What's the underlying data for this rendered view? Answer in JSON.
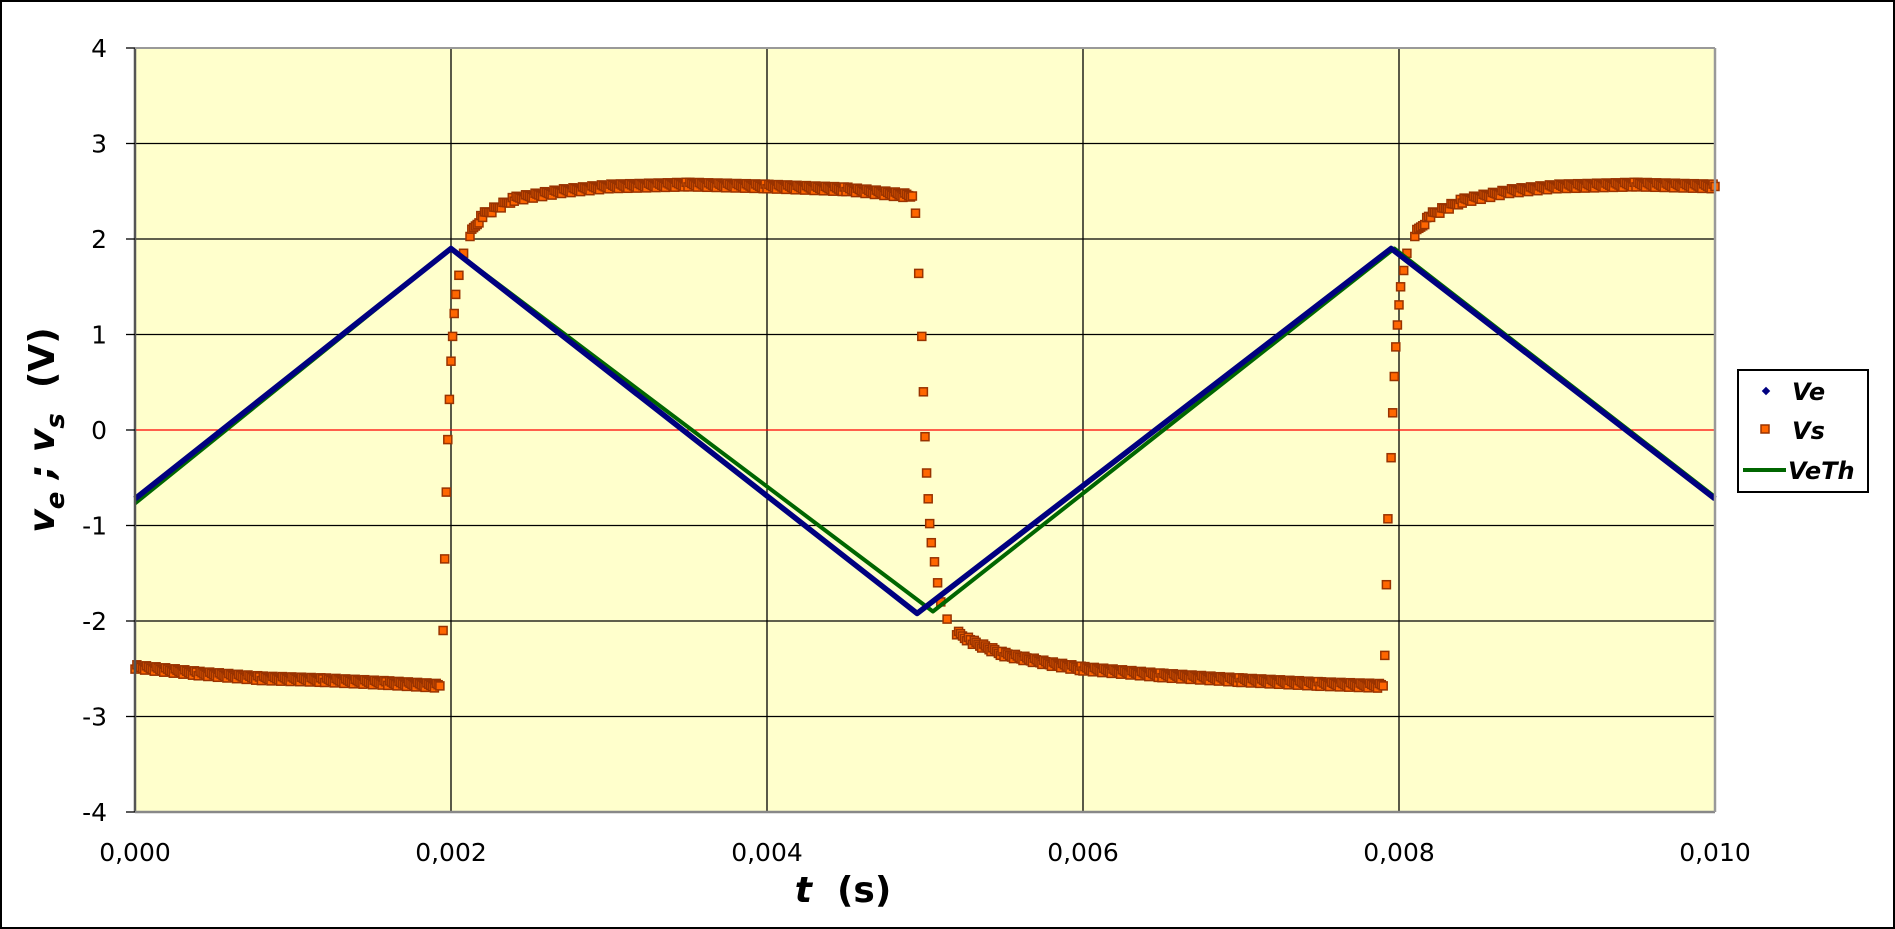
{
  "chart_data": {
    "type": "scatter",
    "title": "",
    "xlabel": "t  (s)",
    "ylabel": "ve ; vs  (V)",
    "ylabel_parts": {
      "v1": "v",
      "sub1": "e",
      "sep": " ; ",
      "v2": "v",
      "sub2": "s",
      "unit": "  (V)"
    },
    "xlabel_parts": {
      "var": "t",
      "unit": "  (s)"
    },
    "xlim": [
      0,
      0.01
    ],
    "ylim": [
      -4,
      4
    ],
    "x_ticks": [
      0,
      0.002,
      0.004,
      0.006,
      0.008,
      0.01
    ],
    "x_tick_labels": [
      "0,000",
      "0,002",
      "0,004",
      "0,006",
      "0,008",
      "0,010"
    ],
    "y_ticks": [
      4,
      3,
      2,
      1,
      0,
      -1,
      -2,
      -3,
      -4
    ],
    "y_tick_labels": [
      "4",
      "3",
      "2",
      "1",
      "0",
      "-1",
      "-2",
      "-3",
      "-4"
    ],
    "grid": true,
    "plot_background": "#ffffcc",
    "zero_line_color": "#ff0000",
    "legend_position": "right",
    "series": [
      {
        "name": "Ve",
        "kind": "markers-dot",
        "color": "#000080",
        "points": [
          [
            0.0,
            -0.72
          ],
          [
            0.002,
            1.9
          ],
          [
            0.00495,
            -1.92
          ],
          [
            0.00795,
            1.9
          ],
          [
            0.01,
            -0.72
          ]
        ]
      },
      {
        "name": "Vs",
        "kind": "markers-square",
        "color": "#ff6600",
        "edge_color": "#993300",
        "points": [
          [
            0.0,
            -2.48
          ],
          [
            0.0004,
            -2.55
          ],
          [
            0.0008,
            -2.6
          ],
          [
            0.0012,
            -2.62
          ],
          [
            0.0016,
            -2.65
          ],
          [
            0.00193,
            -2.68
          ],
          [
            0.00195,
            -2.1
          ],
          [
            0.00196,
            -1.35
          ],
          [
            0.00197,
            -0.65
          ],
          [
            0.00198,
            -0.1
          ],
          [
            0.00199,
            0.32
          ],
          [
            0.002,
            0.72
          ],
          [
            0.00201,
            0.98
          ],
          [
            0.00202,
            1.22
          ],
          [
            0.00203,
            1.42
          ],
          [
            0.00205,
            1.62
          ],
          [
            0.00208,
            1.85
          ],
          [
            0.00212,
            2.05
          ],
          [
            0.0022,
            2.25
          ],
          [
            0.0024,
            2.42
          ],
          [
            0.0027,
            2.5
          ],
          [
            0.003,
            2.55
          ],
          [
            0.0035,
            2.57
          ],
          [
            0.004,
            2.55
          ],
          [
            0.0045,
            2.52
          ],
          [
            0.00492,
            2.45
          ],
          [
            0.00494,
            2.27
          ],
          [
            0.00496,
            1.64
          ],
          [
            0.00498,
            0.98
          ],
          [
            0.00499,
            0.4
          ],
          [
            0.005,
            -0.07
          ],
          [
            0.00501,
            -0.45
          ],
          [
            0.00502,
            -0.72
          ],
          [
            0.00503,
            -0.98
          ],
          [
            0.00504,
            -1.18
          ],
          [
            0.00506,
            -1.38
          ],
          [
            0.00508,
            -1.6
          ],
          [
            0.0051,
            -1.8
          ],
          [
            0.00514,
            -1.98
          ],
          [
            0.0052,
            -2.12
          ],
          [
            0.0053,
            -2.22
          ],
          [
            0.0055,
            -2.35
          ],
          [
            0.0058,
            -2.45
          ],
          [
            0.006,
            -2.5
          ],
          [
            0.0065,
            -2.57
          ],
          [
            0.007,
            -2.62
          ],
          [
            0.0075,
            -2.66
          ],
          [
            0.0079,
            -2.68
          ],
          [
            0.00791,
            -2.36
          ],
          [
            0.00792,
            -1.62
          ],
          [
            0.00793,
            -0.93
          ],
          [
            0.00795,
            -0.29
          ],
          [
            0.00796,
            0.18
          ],
          [
            0.00797,
            0.56
          ],
          [
            0.00798,
            0.87
          ],
          [
            0.00799,
            1.1
          ],
          [
            0.008,
            1.31
          ],
          [
            0.00801,
            1.5
          ],
          [
            0.00803,
            1.67
          ],
          [
            0.00805,
            1.85
          ],
          [
            0.0081,
            2.05
          ],
          [
            0.0082,
            2.25
          ],
          [
            0.0084,
            2.4
          ],
          [
            0.0087,
            2.5
          ],
          [
            0.009,
            2.55
          ],
          [
            0.0095,
            2.57
          ],
          [
            0.01,
            2.55
          ]
        ]
      },
      {
        "name": "VeTh",
        "kind": "line",
        "color": "#006600",
        "points": [
          [
            0.0,
            -0.77
          ],
          [
            0.002,
            1.9
          ],
          [
            0.00505,
            -1.9
          ],
          [
            0.00797,
            1.9
          ],
          [
            0.01,
            -0.7
          ]
        ]
      }
    ]
  },
  "legend": {
    "items": [
      {
        "label": "Ve"
      },
      {
        "label": "Vs"
      },
      {
        "label": "VeTh"
      }
    ]
  }
}
